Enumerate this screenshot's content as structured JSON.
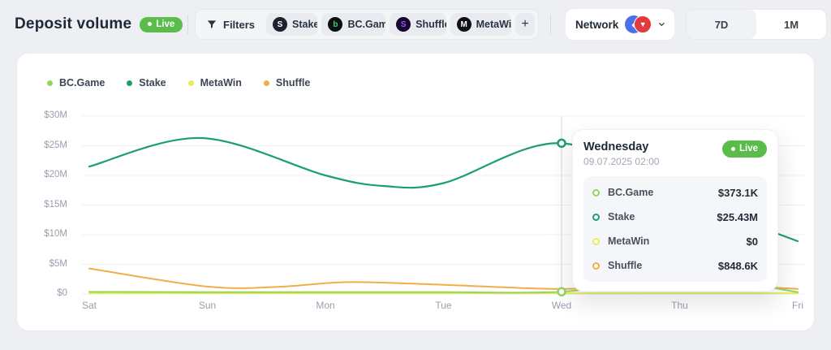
{
  "header": {
    "title": "Deposit volume",
    "live_badge": "Live",
    "filters_label": "Filters",
    "filter_chips": [
      {
        "label": "Stake",
        "close": "×",
        "logo_text": "S",
        "logo_bg": "#1b222e",
        "logo_fg": "#ffffff"
      },
      {
        "label": "BC.Game",
        "close": "×",
        "logo_text": "b",
        "logo_bg": "#0e1012",
        "logo_fg": "#35d06f"
      },
      {
        "label": "Shuffle",
        "close": "×",
        "logo_text": "S",
        "logo_bg": "#17062f",
        "logo_fg": "#8d5cf6"
      },
      {
        "label": "MetaWin",
        "close": "×",
        "logo_text": "M",
        "logo_bg": "#101114",
        "logo_fg": "#ffffff"
      }
    ],
    "add_filter_label": "+",
    "network_label": "Network",
    "network_coins": [
      {
        "name": "blue-coin",
        "color": "#4c6fe7",
        "glyph": "◆"
      },
      {
        "name": "red-coin",
        "color": "#e23b3b",
        "glyph": "▼"
      }
    ],
    "range_options": [
      {
        "label": "7D",
        "selected": true
      },
      {
        "label": "1M",
        "selected": false
      }
    ]
  },
  "chart_data": {
    "type": "line",
    "title": "Deposit volume",
    "unit": "USD",
    "categories": [
      "Sat",
      "Sun",
      "Mon",
      "Tue",
      "Wed",
      "Thu",
      "Fri"
    ],
    "ylim_musd": [
      0,
      30
    ],
    "yticks": [
      {
        "label": "$30M",
        "value": 30
      },
      {
        "label": "$25M",
        "value": 25
      },
      {
        "label": "$20M",
        "value": 20
      },
      {
        "label": "$15M",
        "value": 15
      },
      {
        "label": "$10M",
        "value": 10
      },
      {
        "label": "$5M",
        "value": 5
      },
      {
        "label": "$0",
        "value": 0
      }
    ],
    "grid": "horizontal",
    "legend_position": "top-left",
    "series": [
      {
        "name": "BC.Game",
        "color": "#97d45f",
        "daily_musd": [
          0.35,
          0.32,
          0.3,
          0.32,
          0.373,
          2.1,
          0.3
        ],
        "points_musd": [
          [
            0,
            0.35
          ],
          [
            1,
            0.32
          ],
          [
            2,
            0.3
          ],
          [
            3,
            0.32
          ],
          [
            4,
            0.373
          ],
          [
            4.65,
            2.3
          ],
          [
            5.0,
            1.75
          ],
          [
            5.35,
            2.35
          ],
          [
            6,
            0.3
          ]
        ]
      },
      {
        "name": "Stake",
        "color": "#1d9e6d",
        "daily_musd": [
          21.5,
          26.2,
          20.0,
          18.5,
          25.43,
          16.5,
          8.9
        ],
        "points_musd": [
          [
            0,
            21.5
          ],
          [
            0.95,
            26.3
          ],
          [
            2,
            20.0
          ],
          [
            2.5,
            18.2
          ],
          [
            3,
            18.7
          ],
          [
            4,
            25.43
          ],
          [
            5,
            16.5
          ],
          [
            6,
            8.9
          ]
        ]
      },
      {
        "name": "MetaWin",
        "color": "#e7ed57",
        "daily_musd": [
          0.1,
          0.1,
          0.1,
          0.1,
          0,
          0.1,
          0.1
        ],
        "points_musd": [
          [
            0,
            0.12
          ],
          [
            1,
            0.12
          ],
          [
            2,
            0.12
          ],
          [
            3,
            0.12
          ],
          [
            4,
            0.1
          ],
          [
            5,
            0.12
          ],
          [
            6,
            0.12
          ]
        ]
      },
      {
        "name": "Shuffle",
        "color": "#f0ad49",
        "daily_musd": [
          4.3,
          1.25,
          1.9,
          1.55,
          0.85,
          1.5,
          0.85
        ],
        "points_musd": [
          [
            0,
            4.3
          ],
          [
            1,
            1.25
          ],
          [
            1.6,
            1.2
          ],
          [
            2.2,
            2.0
          ],
          [
            3,
            1.55
          ],
          [
            4,
            0.85
          ],
          [
            4.7,
            1.6
          ],
          [
            5.4,
            1.45
          ],
          [
            6,
            0.85
          ]
        ]
      }
    ],
    "hover": {
      "day_index": 4,
      "category": "Wed",
      "markers": [
        {
          "series": "Stake",
          "value_musd": 25.43
        },
        {
          "series": "BC.Game",
          "value_musd": 0.373
        }
      ]
    }
  },
  "tooltip": {
    "title": "Wednesday",
    "datetime": "09.07.2025 02:00",
    "live_badge": "Live",
    "rows": [
      {
        "name": "BC.Game",
        "value": "$373.1K",
        "color": "#97d45f"
      },
      {
        "name": "Stake",
        "value": "$25.43M",
        "color": "#1d9e6d"
      },
      {
        "name": "MetaWin",
        "value": "$0",
        "color": "#e7ed57"
      },
      {
        "name": "Shuffle",
        "value": "$848.6K",
        "color": "#f0ad49"
      }
    ]
  }
}
